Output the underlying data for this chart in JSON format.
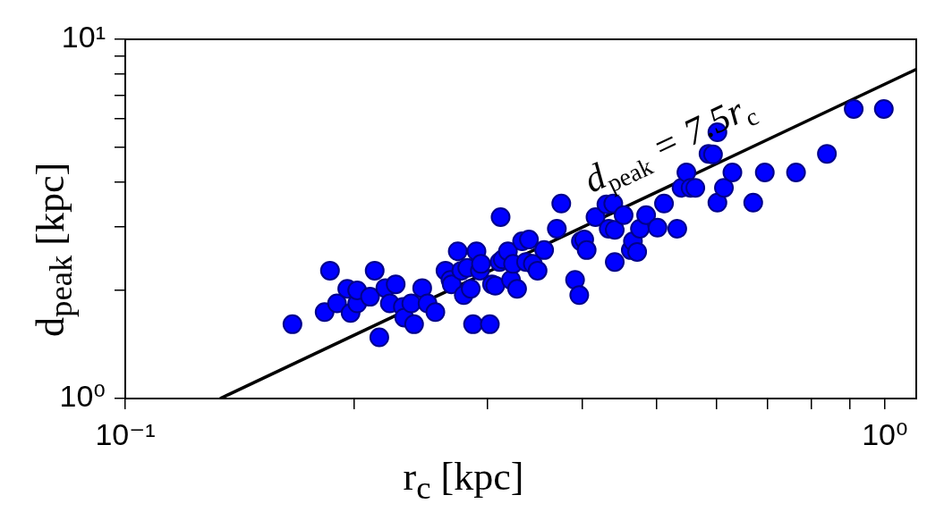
{
  "chart_data": {
    "type": "scatter",
    "xlabel": "r$_{c}$ [kpc]",
    "ylabel": "d$_{peak}$ [kpc]",
    "log": "xy",
    "grid": false,
    "legend": false,
    "xlim": [
      0.1,
      1.1
    ],
    "ylim": [
      1,
      10
    ],
    "xticks": [
      {
        "value": 0.1,
        "label": "10⁻¹"
      },
      {
        "value": 0.2,
        "label": null
      },
      {
        "value": 0.3,
        "label": null
      },
      {
        "value": 0.4,
        "label": null
      },
      {
        "value": 0.5,
        "label": null
      },
      {
        "value": 0.6,
        "label": null
      },
      {
        "value": 0.7,
        "label": null
      },
      {
        "value": 0.8,
        "label": null
      },
      {
        "value": 0.9,
        "label": null
      },
      {
        "value": 1,
        "label": "10⁰"
      }
    ],
    "yticks": [
      {
        "value": 1,
        "label": "10⁰"
      },
      {
        "value": 2,
        "label": null
      },
      {
        "value": 3,
        "label": null
      },
      {
        "value": 4,
        "label": null
      },
      {
        "value": 5,
        "label": null
      },
      {
        "value": 6,
        "label": null
      },
      {
        "value": 7,
        "label": null
      },
      {
        "value": 8,
        "label": null
      },
      {
        "value": 9,
        "label": null
      },
      {
        "value": 10,
        "label": "10¹"
      }
    ],
    "series": [
      {
        "marker": "circle",
        "color": "#0000ff",
        "x": [
          0.166,
          0.183,
          0.186,
          0.19,
          0.196,
          0.198,
          0.202,
          0.202,
          0.21,
          0.213,
          0.216,
          0.22,
          0.223,
          0.227,
          0.232,
          0.233,
          0.238,
          0.24,
          0.246,
          0.25,
          0.256,
          0.264,
          0.268,
          0.269,
          0.274,
          0.277,
          0.279,
          0.282,
          0.285,
          0.287,
          0.29,
          0.293,
          0.294,
          0.302,
          0.304,
          0.307,
          0.312,
          0.311,
          0.314,
          0.319,
          0.322,
          0.324,
          0.328,
          0.333,
          0.337,
          0.34,
          0.344,
          0.349,
          0.356,
          0.37,
          0.375,
          0.391,
          0.396,
          0.398,
          0.402,
          0.405,
          0.416,
          0.43,
          0.433,
          0.439,
          0.441,
          0.441,
          0.453,
          0.463,
          0.466,
          0.472,
          0.476,
          0.485,
          0.502,
          0.512,
          0.533,
          0.54,
          0.548,
          0.555,
          0.563,
          0.586,
          0.594,
          0.602,
          0.614,
          0.602,
          0.63,
          0.671,
          0.695,
          0.764,
          0.839,
          0.91,
          0.997
        ],
        "values": [
          1.61,
          1.74,
          2.27,
          1.84,
          2.02,
          1.73,
          1.84,
          2.0,
          1.92,
          2.27,
          1.48,
          2.03,
          1.84,
          2.08,
          1.8,
          1.68,
          1.84,
          1.61,
          2.03,
          1.84,
          1.74,
          2.27,
          2.14,
          2.08,
          2.57,
          2.27,
          1.94,
          2.31,
          2.02,
          1.61,
          2.57,
          2.27,
          2.37,
          1.61,
          2.08,
          2.06,
          3.2,
          2.4,
          2.44,
          2.57,
          2.14,
          2.37,
          2.02,
          2.74,
          2.4,
          2.77,
          2.37,
          2.27,
          2.59,
          2.97,
          3.49,
          2.14,
          1.94,
          2.74,
          2.77,
          2.59,
          3.2,
          3.47,
          2.97,
          3.49,
          2.4,
          2.95,
          3.24,
          2.59,
          2.74,
          2.56,
          2.97,
          3.24,
          2.99,
          3.49,
          2.97,
          3.86,
          4.26,
          3.86,
          3.86,
          4.8,
          4.78,
          3.51,
          3.86,
          5.51,
          4.26,
          3.51,
          4.26,
          4.26,
          4.8,
          6.4,
          6.4
        ]
      },
      {
        "type": "line",
        "marker": "none",
        "name": "d$_{peak}$ = 7.5r$_{c}$",
        "color": "#000000",
        "x": [
          0.1333,
          1.1
        ],
        "values": [
          1,
          8.25
        ]
      }
    ]
  }
}
